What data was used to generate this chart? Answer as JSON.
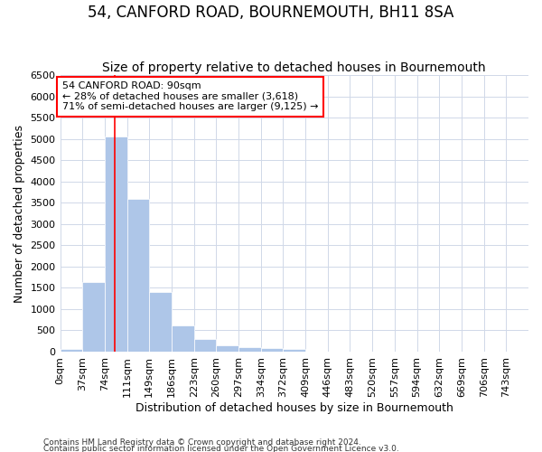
{
  "title": "54, CANFORD ROAD, BOURNEMOUTH, BH11 8SA",
  "subtitle": "Size of property relative to detached houses in Bournemouth",
  "xlabel": "Distribution of detached houses by size in Bournemouth",
  "ylabel": "Number of detached properties",
  "footer_line1": "Contains HM Land Registry data © Crown copyright and database right 2024.",
  "footer_line2": "Contains public sector information licensed under the Open Government Licence v3.0.",
  "bar_labels": [
    "0sqm",
    "37sqm",
    "74sqm",
    "111sqm",
    "149sqm",
    "186sqm",
    "223sqm",
    "260sqm",
    "297sqm",
    "334sqm",
    "372sqm",
    "409sqm",
    "446sqm",
    "483sqm",
    "520sqm",
    "557sqm",
    "594sqm",
    "632sqm",
    "669sqm",
    "706sqm",
    "743sqm"
  ],
  "bar_values": [
    70,
    1640,
    5060,
    3590,
    1400,
    620,
    290,
    145,
    100,
    75,
    55,
    0,
    0,
    0,
    0,
    0,
    0,
    0,
    0,
    0,
    0
  ],
  "bar_color": "#aec6e8",
  "bar_edge_color": "#aec6e8",
  "grid_color": "#d0d8e8",
  "annotation_text": "54 CANFORD ROAD: 90sqm\n← 28% of detached houses are smaller (3,618)\n71% of semi-detached houses are larger (9,125) →",
  "annotation_box_color": "white",
  "annotation_box_edge_color": "red",
  "property_line_x": 90,
  "property_line_color": "red",
  "ylim": [
    0,
    6500
  ],
  "yticks": [
    0,
    500,
    1000,
    1500,
    2000,
    2500,
    3000,
    3500,
    4000,
    4500,
    5000,
    5500,
    6000,
    6500
  ],
  "bin_width": 37,
  "background_color": "white",
  "title_fontsize": 12,
  "subtitle_fontsize": 10,
  "xlabel_fontsize": 9,
  "ylabel_fontsize": 9,
  "tick_fontsize": 8,
  "footer_fontsize": 6.5
}
